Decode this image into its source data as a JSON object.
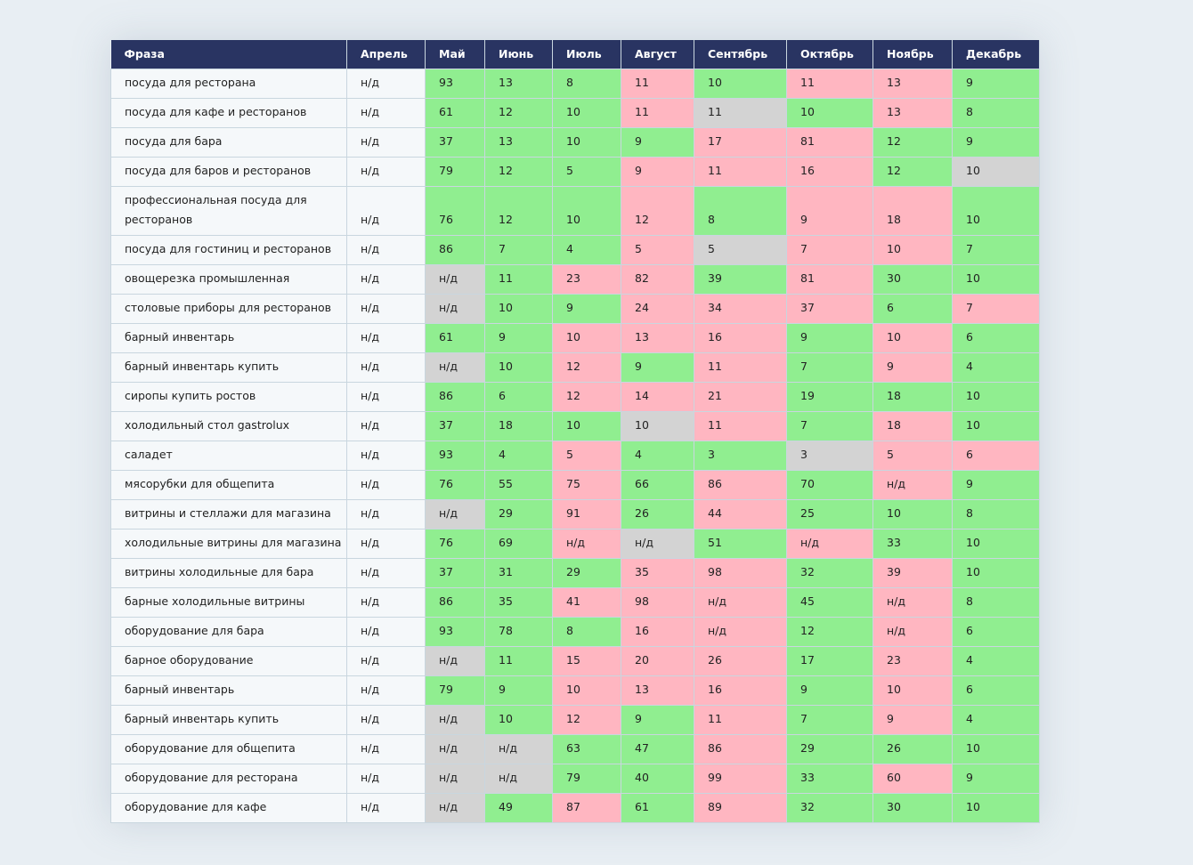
{
  "colors": {
    "header": "#293462",
    "good": "#90ee90",
    "bad": "#ffb6c1",
    "none": "#d3d3d3"
  },
  "headers": [
    "Фраза",
    "Апрель",
    "Май",
    "Июнь",
    "Июль",
    "Август",
    "Сентябрь",
    "Октябрь",
    "Ноябрь",
    "Декабрь"
  ],
  "rows": [
    {
      "phrase": "посуда для ресторана",
      "april": "н/д",
      "values": [
        "93",
        "13",
        "8",
        "11",
        "10",
        "11",
        "13",
        "9"
      ],
      "status": [
        "g",
        "g",
        "g",
        "r",
        "g",
        "r",
        "r",
        "g"
      ]
    },
    {
      "phrase": "посуда для кафе и ресторанов",
      "april": "н/д",
      "values": [
        "61",
        "12",
        "10",
        "11",
        "11",
        "10",
        "13",
        "8"
      ],
      "status": [
        "g",
        "g",
        "g",
        "r",
        "n",
        "g",
        "r",
        "g"
      ]
    },
    {
      "phrase": "посуда для бара",
      "april": "н/д",
      "values": [
        "37",
        "13",
        "10",
        "9",
        "17",
        "81",
        "12",
        "9"
      ],
      "status": [
        "g",
        "g",
        "g",
        "g",
        "r",
        "r",
        "g",
        "g"
      ]
    },
    {
      "phrase": "посуда для баров и ресторанов",
      "april": "н/д",
      "values": [
        "79",
        "12",
        "5",
        "9",
        "11",
        "16",
        "12",
        "10"
      ],
      "status": [
        "g",
        "g",
        "g",
        "r",
        "r",
        "r",
        "g",
        "n"
      ]
    },
    {
      "phrase": "профессиональная посуда для ресторанов",
      "april": "н/д",
      "values": [
        "76",
        "12",
        "10",
        "12",
        "8",
        "9",
        "18",
        "10"
      ],
      "status": [
        "g",
        "g",
        "g",
        "r",
        "g",
        "r",
        "r",
        "g"
      ]
    },
    {
      "phrase": "посуда для гостиниц и ресторанов",
      "april": "н/д",
      "values": [
        "86",
        "7",
        "4",
        "5",
        "5",
        "7",
        "10",
        "7"
      ],
      "status": [
        "g",
        "g",
        "g",
        "r",
        "n",
        "r",
        "r",
        "g"
      ]
    },
    {
      "phrase": "овощерезка промышленная",
      "april": "н/д",
      "values": [
        "н/д",
        "11",
        "23",
        "82",
        "39",
        "81",
        "30",
        "10"
      ],
      "status": [
        "n",
        "g",
        "r",
        "r",
        "g",
        "r",
        "g",
        "g"
      ]
    },
    {
      "phrase": "столовые приборы для ресторанов",
      "april": "н/д",
      "values": [
        "н/д",
        "10",
        "9",
        "24",
        "34",
        "37",
        "6",
        "7"
      ],
      "status": [
        "n",
        "g",
        "g",
        "r",
        "r",
        "r",
        "g",
        "r"
      ]
    },
    {
      "phrase": "барный инвентарь",
      "april": "н/д",
      "values": [
        "61",
        "9",
        "10",
        "13",
        "16",
        "9",
        "10",
        "6"
      ],
      "status": [
        "g",
        "g",
        "r",
        "r",
        "r",
        "g",
        "r",
        "g"
      ]
    },
    {
      "phrase": "барный инвентарь купить",
      "april": "н/д",
      "values": [
        "н/д",
        "10",
        "12",
        "9",
        "11",
        "7",
        "9",
        "4"
      ],
      "status": [
        "n",
        "g",
        "r",
        "g",
        "r",
        "g",
        "r",
        "g"
      ]
    },
    {
      "phrase": "сиропы купить ростов",
      "april": "н/д",
      "values": [
        "86",
        "6",
        "12",
        "14",
        "21",
        "19",
        "18",
        "10"
      ],
      "status": [
        "g",
        "g",
        "r",
        "r",
        "r",
        "g",
        "g",
        "g"
      ]
    },
    {
      "phrase": "холодильный стол gastrolux",
      "april": "н/д",
      "values": [
        "37",
        "18",
        "10",
        "10",
        "11",
        "7",
        "18",
        "10"
      ],
      "status": [
        "g",
        "g",
        "g",
        "n",
        "r",
        "g",
        "r",
        "g"
      ]
    },
    {
      "phrase": "саладет",
      "april": "н/д",
      "values": [
        "93",
        "4",
        "5",
        "4",
        "3",
        "3",
        "5",
        "6"
      ],
      "status": [
        "g",
        "g",
        "r",
        "g",
        "g",
        "n",
        "r",
        "r"
      ]
    },
    {
      "phrase": "мясорубки для общепита",
      "april": "н/д",
      "values": [
        "76",
        "55",
        "75",
        "66",
        "86",
        "70",
        "н/д",
        "9"
      ],
      "status": [
        "g",
        "g",
        "r",
        "g",
        "r",
        "g",
        "r",
        "g"
      ]
    },
    {
      "phrase": "витрины и стеллажи для магазина",
      "april": "н/д",
      "values": [
        "н/д",
        "29",
        "91",
        "26",
        "44",
        "25",
        "10",
        "8"
      ],
      "status": [
        "n",
        "g",
        "r",
        "g",
        "r",
        "g",
        "g",
        "g"
      ]
    },
    {
      "phrase": "холодильные витрины для магазина",
      "april": "н/д",
      "values": [
        "76",
        "69",
        "н/д",
        "н/д",
        "51",
        "н/д",
        "33",
        "10"
      ],
      "status": [
        "g",
        "g",
        "r",
        "n",
        "g",
        "r",
        "g",
        "g"
      ]
    },
    {
      "phrase": "витрины холодильные для бара",
      "april": "н/д",
      "values": [
        "37",
        "31",
        "29",
        "35",
        "98",
        "32",
        "39",
        "10"
      ],
      "status": [
        "g",
        "g",
        "g",
        "r",
        "r",
        "g",
        "r",
        "g"
      ]
    },
    {
      "phrase": "барные холодильные витрины",
      "april": "н/д",
      "values": [
        "86",
        "35",
        "41",
        "98",
        "н/д",
        "45",
        "н/д",
        "8"
      ],
      "status": [
        "g",
        "g",
        "r",
        "r",
        "r",
        "g",
        "r",
        "g"
      ]
    },
    {
      "phrase": "оборудование для бара",
      "april": "н/д",
      "values": [
        "93",
        "78",
        "8",
        "16",
        "н/д",
        "12",
        "н/д",
        "6"
      ],
      "status": [
        "g",
        "g",
        "g",
        "r",
        "r",
        "g",
        "r",
        "g"
      ]
    },
    {
      "phrase": "барное оборудование",
      "april": "н/д",
      "values": [
        "н/д",
        "11",
        "15",
        "20",
        "26",
        "17",
        "23",
        "4"
      ],
      "status": [
        "n",
        "g",
        "r",
        "r",
        "r",
        "g",
        "r",
        "g"
      ]
    },
    {
      "phrase": "барный инвентарь",
      "april": "н/д",
      "values": [
        "79",
        "9",
        "10",
        "13",
        "16",
        "9",
        "10",
        "6"
      ],
      "status": [
        "g",
        "g",
        "r",
        "r",
        "r",
        "g",
        "r",
        "g"
      ]
    },
    {
      "phrase": "барный инвентарь купить",
      "april": "н/д",
      "values": [
        "н/д",
        "10",
        "12",
        "9",
        "11",
        "7",
        "9",
        "4"
      ],
      "status": [
        "n",
        "g",
        "r",
        "g",
        "r",
        "g",
        "r",
        "g"
      ]
    },
    {
      "phrase": "оборудование для общепита",
      "april": "н/д",
      "values": [
        "н/д",
        "н/д",
        "63",
        "47",
        "86",
        "29",
        "26",
        "10"
      ],
      "status": [
        "n",
        "n",
        "g",
        "g",
        "r",
        "g",
        "g",
        "g"
      ]
    },
    {
      "phrase": "оборудование для ресторана",
      "april": "н/д",
      "values": [
        "н/д",
        "н/д",
        "79",
        "40",
        "99",
        "33",
        "60",
        "9"
      ],
      "status": [
        "n",
        "n",
        "g",
        "g",
        "r",
        "g",
        "r",
        "g"
      ]
    },
    {
      "phrase": "оборудование для кафе",
      "april": "н/д",
      "values": [
        "н/д",
        "49",
        "87",
        "61",
        "89",
        "32",
        "30",
        "10"
      ],
      "status": [
        "n",
        "g",
        "r",
        "g",
        "r",
        "g",
        "g",
        "g"
      ]
    }
  ]
}
